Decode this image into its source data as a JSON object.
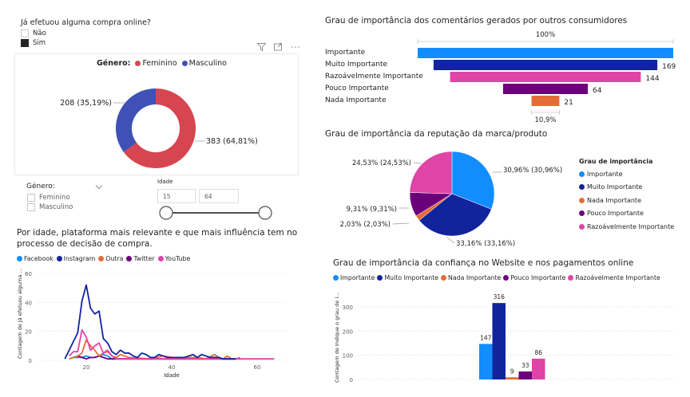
{
  "purchase_slicer": {
    "title": "Já efetuou alguma compra online?",
    "options": [
      {
        "label": "Não",
        "checked": false
      },
      {
        "label": "Sim",
        "checked": true
      }
    ]
  },
  "visual_header_icons": [
    "filter-icon",
    "focus-mode-icon",
    "more-options-icon"
  ],
  "gender_slicer": {
    "title": "Género:",
    "options": [
      {
        "label": "Feminino",
        "checked": false
      },
      {
        "label": "Masculino",
        "checked": false
      }
    ]
  },
  "age_slicer": {
    "title": "Idade",
    "min_value": "15",
    "max_value": "64",
    "range_min": 15,
    "range_max": 64
  },
  "colors": {
    "importante": "#118DFF",
    "muito_importante": "#12239E",
    "nada_importante": "#E66C37",
    "pouco_importante": "#6B007B",
    "razoavel": "#E044A7",
    "feminino": "#D64550",
    "masculino": "#3F51B5"
  },
  "chart_data": [
    {
      "id": "gender_donut",
      "type": "pie",
      "subtype": "donut",
      "legend_title": "Género:",
      "legend_position": "top-center",
      "slices": [
        {
          "name": "Feminino",
          "value": 383,
          "percent": "64,81%",
          "label": "383 (64,81%)",
          "color": "#D64550"
        },
        {
          "name": "Masculino",
          "value": 208,
          "percent": "35,19%",
          "label": "208 (35,19%)",
          "color": "#3F51B5"
        }
      ]
    },
    {
      "id": "platform_by_age",
      "type": "line",
      "title_line1": "Por idade, plataforma mais relevante e que mais influência tem no",
      "title_line2": "processo de decisão de compra.",
      "xlabel": "Idade",
      "ylabel": "Contagem de Já efetuou alguma ...",
      "xlim": [
        10,
        67
      ],
      "ylim": [
        0,
        60
      ],
      "xticks": [
        20,
        40,
        60
      ],
      "yticks": [
        0,
        20,
        40,
        60
      ],
      "grid": true,
      "legend_position": "top-left",
      "series": [
        {
          "name": "Facebook",
          "color": "#118DFF",
          "x": [
            16,
            17,
            18,
            19,
            20,
            21,
            22,
            23,
            24,
            25,
            26,
            27,
            28,
            30,
            35,
            40,
            45,
            50,
            55
          ],
          "y": [
            1,
            2,
            2,
            2,
            3,
            2,
            2,
            3,
            4,
            3,
            1,
            1,
            1,
            1,
            1,
            1,
            1,
            1,
            1
          ]
        },
        {
          "name": "Instagram",
          "color": "#12239E",
          "x": [
            15,
            16,
            17,
            18,
            19,
            20,
            21,
            22,
            23,
            24,
            25,
            26,
            27,
            28,
            29,
            30,
            31,
            32,
            33,
            34,
            35,
            36,
            37,
            38,
            39,
            40,
            41,
            42,
            43,
            44,
            45,
            46,
            47,
            48,
            49,
            50,
            51,
            52,
            53,
            54,
            55
          ],
          "y": [
            1,
            7,
            13,
            19,
            41,
            52,
            36,
            32,
            34,
            15,
            12,
            6,
            4,
            7,
            5,
            5,
            3,
            2,
            5,
            4,
            2,
            2,
            4,
            3,
            2,
            2,
            2,
            2,
            2,
            3,
            4,
            2,
            4,
            3,
            2,
            2,
            2,
            1,
            1,
            1,
            1
          ]
        },
        {
          "name": "Outra",
          "color": "#E66C37",
          "x": [
            16,
            17,
            18,
            19,
            20,
            21,
            22,
            23,
            24,
            25,
            26,
            27,
            28,
            29,
            30,
            35,
            38,
            40,
            42,
            44,
            46,
            48,
            50,
            51,
            52,
            53,
            54,
            55,
            56
          ],
          "y": [
            1,
            2,
            3,
            5,
            14,
            10,
            7,
            3,
            5,
            6,
            3,
            2,
            4,
            3,
            2,
            1,
            3,
            2,
            2,
            2,
            2,
            1,
            4,
            2,
            1,
            3,
            1,
            1,
            2
          ]
        },
        {
          "name": "Twitter",
          "color": "#6B007B",
          "x": [
            17,
            18,
            19,
            20,
            21,
            22,
            23,
            24,
            25,
            26,
            30,
            35,
            40,
            45,
            50,
            55
          ],
          "y": [
            2,
            3,
            2,
            1,
            2,
            2,
            3,
            2,
            1,
            1,
            1,
            1,
            1,
            1,
            1,
            1
          ]
        },
        {
          "name": "YouTube",
          "color": "#E044A7",
          "x": [
            16,
            17,
            18,
            19,
            20,
            21,
            22,
            23,
            24,
            25,
            26,
            27,
            30,
            35,
            40,
            45,
            50,
            55,
            60,
            64
          ],
          "y": [
            3,
            6,
            6,
            21,
            16,
            7,
            10,
            12,
            5,
            7,
            3,
            1,
            1,
            1,
            1,
            1,
            1,
            1,
            1,
            1
          ]
        }
      ]
    },
    {
      "id": "comments_funnel",
      "type": "bar",
      "subtype": "funnel",
      "title": "Grau de importância dos comentários gerados por outros consumidores",
      "top_percent_label": "100%",
      "bottom_percent_label": "10,9%",
      "categories": [
        "Importante",
        "Muito Importante",
        "Razoávelmente Importante",
        "Pouco Importante",
        "Nada Importante"
      ],
      "values": [
        193,
        169,
        144,
        64,
        21
      ],
      "value_labels": [
        "",
        "169",
        "144",
        "64",
        "21"
      ],
      "colors": [
        "#118DFF",
        "#12239E",
        "#E044A7",
        "#6B007B",
        "#E66C37"
      ]
    },
    {
      "id": "reputation_pie",
      "type": "pie",
      "title": "Grau de importância da reputação da marca/produto",
      "legend_title": "Grau de importância",
      "legend_position": "right",
      "slices": [
        {
          "name": "Importante",
          "value": 30.96,
          "label": "30,96% (30,96%)",
          "color": "#118DFF"
        },
        {
          "name": "Muito Importante",
          "value": 33.16,
          "label": "33,16% (33,16%)",
          "color": "#12239E"
        },
        {
          "name": "Nada Importante",
          "value": 2.03,
          "label": "2,03% (2,03%)",
          "color": "#E66C37"
        },
        {
          "name": "Pouco Importante",
          "value": 9.31,
          "label": "9,31% (9,31%)",
          "color": "#6B007B"
        },
        {
          "name": "Razoávelmente Importante",
          "value": 24.53,
          "label": "24,53% (24,53%)",
          "color": "#E044A7"
        }
      ]
    },
    {
      "id": "trust_bars",
      "type": "bar",
      "title": "Grau de importância da confiança no Website e nos pagamentos online",
      "ylabel": "Contagem de Indique o grau de i...",
      "ylim": [
        0,
        330
      ],
      "yticks": [
        0,
        100,
        200,
        300
      ],
      "grid": true,
      "legend_position": "top-left",
      "categories": [
        "Importante",
        "Muito Importante",
        "Nada Importante",
        "Pouco Importante",
        "Razoávelmente Importante"
      ],
      "values": [
        147,
        316,
        9,
        33,
        86
      ],
      "colors": [
        "#118DFF",
        "#12239E",
        "#E66C37",
        "#6B007B",
        "#E044A7"
      ]
    }
  ]
}
